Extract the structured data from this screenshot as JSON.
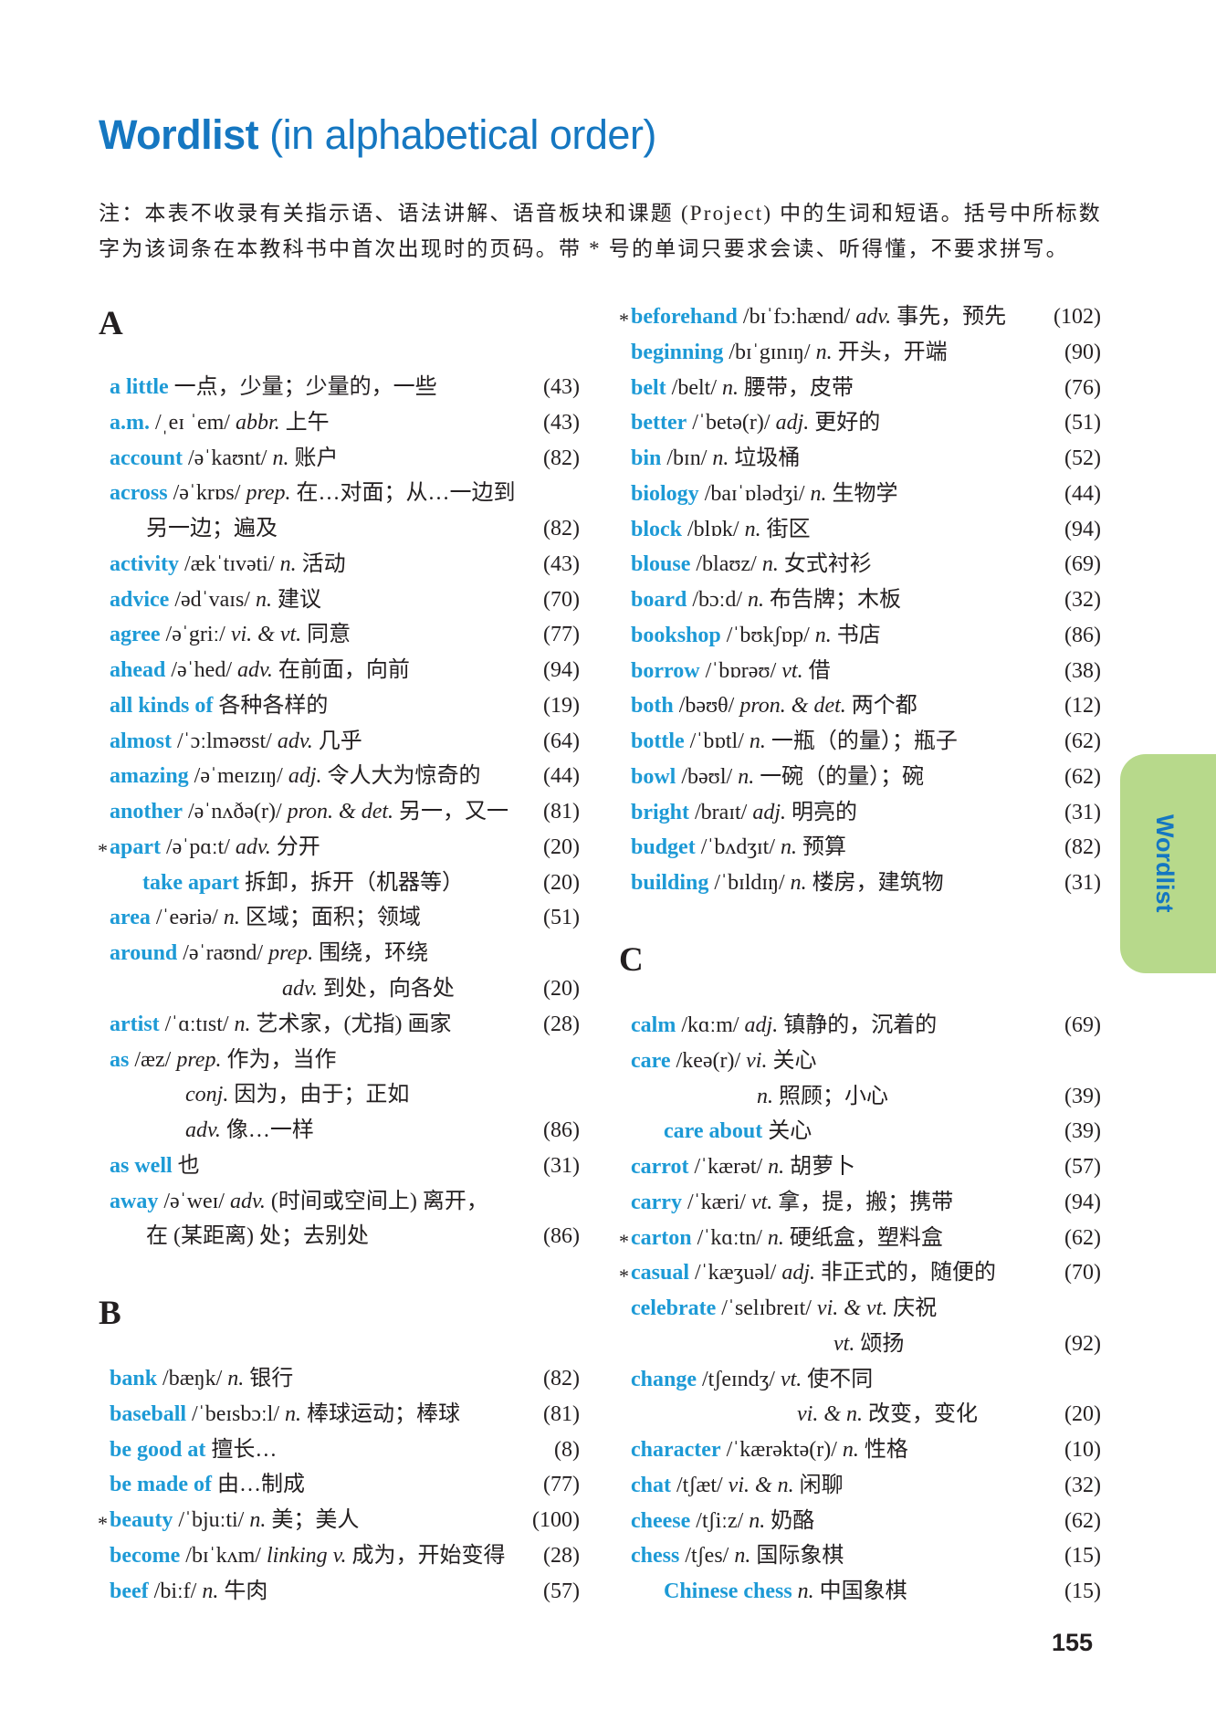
{
  "title": {
    "bold": "Wordlist",
    "rest": " (in alphabetical order)"
  },
  "note": {
    "line1": "注：本表不收录有关指示语、语法讲解、语音板块和课题 (Project) 中的生词和短语。括号中所标数",
    "line2": "字为该词条在本教科书中首次出现时的页码。带 * 号的单词只要求会读、听得懂，不要求拼写。"
  },
  "colors": {
    "headword": "#1d9ad6",
    "title": "#1577c1",
    "tab": "#b7d98b"
  },
  "side_tab": "Wordlist",
  "page_number": "155",
  "sections": [
    {
      "letter": "A",
      "rows": [
        {
          "head": "a little",
          "zh": "一点，少量；少量的，一些",
          "page": "(43)"
        },
        {
          "head": "a.m.",
          "phon": "/ˌeɪ ˈem/",
          "pos": "abbr.",
          "zh": "上午",
          "page": "(43)"
        },
        {
          "head": "account",
          "phon": "/əˈkaʊnt/",
          "pos": "n.",
          "zh": "账户",
          "page": "(82)"
        },
        {
          "head": "across",
          "phon": "/əˈkrɒs/",
          "pos": "prep.",
          "zh": "在…对面；从…一边到"
        },
        {
          "type": "cont",
          "zh": "另一边；遍及",
          "page": "(82)"
        },
        {
          "head": "activity",
          "phon": "/ækˈtɪvəti/",
          "pos": "n.",
          "zh": "活动",
          "page": "(43)"
        },
        {
          "head": "advice",
          "phon": "/ədˈvaɪs/",
          "pos": "n.",
          "zh": "建议",
          "page": "(70)"
        },
        {
          "head": "agree",
          "phon": "/əˈgriː/",
          "pos": "vi. & vt.",
          "zh": "同意",
          "page": "(77)"
        },
        {
          "head": "ahead",
          "phon": "/əˈhed/",
          "pos": "adv.",
          "zh": "在前面，向前",
          "page": "(94)"
        },
        {
          "head": "all kinds of",
          "zh": "各种各样的",
          "page": "(19)"
        },
        {
          "head": "almost",
          "phon": "/ˈɔːlməʊst/",
          "pos": "adv.",
          "zh": "几乎",
          "page": "(64)"
        },
        {
          "head": "amazing",
          "phon": "/əˈmeɪzɪŋ/",
          "pos": "adj.",
          "zh": "令人大为惊奇的",
          "page": "(44)"
        },
        {
          "head": "another",
          "phon": "/əˈnʌðə(r)/",
          "pos": "pron. & det.",
          "zh": "另一，又一",
          "page": "(81)"
        },
        {
          "star": "*",
          "head": "apart",
          "phon": "/əˈpɑːt/",
          "pos": "adv.",
          "zh": "分开",
          "page": "(20)"
        },
        {
          "type": "sub",
          "head": "take apart",
          "zh": "拆卸，拆开（机器等）",
          "page": "(20)"
        },
        {
          "head": "area",
          "phon": "/ˈeəriə/",
          "pos": "n.",
          "zh": "区域；面积；领域",
          "page": "(51)"
        },
        {
          "head": "around",
          "phon": "/əˈraʊnd/",
          "pos": "prep.",
          "zh": "围绕，环绕"
        },
        {
          "type": "cont",
          "pos": "adv.",
          "zh": "到处，向各处",
          "page": "(20)"
        },
        {
          "head": "artist",
          "phon": "/ˈɑːtɪst/",
          "pos": "n.",
          "zh": "艺术家，(尤指) 画家",
          "page": "(28)"
        },
        {
          "head": "as",
          "phon": "/æz/",
          "pos": "prep.",
          "zh": "作为，当作"
        },
        {
          "type": "cont",
          "pos": "conj.",
          "zh": "因为，由于；正如"
        },
        {
          "type": "cont",
          "pos": "adv.",
          "zh": "像…一样",
          "page": "(86)"
        },
        {
          "head": "as well",
          "zh": "也",
          "page": "(31)"
        },
        {
          "head": "away",
          "phon": "/əˈweɪ/",
          "pos": "adv.",
          "zh": "(时间或空间上) 离开，"
        },
        {
          "type": "cont",
          "zh": "在 (某距离) 处；去别处",
          "page": "(86)"
        }
      ]
    },
    {
      "letter": "B",
      "rows": [
        {
          "head": "bank",
          "phon": "/bæŋk/",
          "pos": "n.",
          "zh": "银行",
          "page": "(82)"
        },
        {
          "head": "baseball",
          "phon": "/ˈbeɪsbɔːl/",
          "pos": "n.",
          "zh": "棒球运动；棒球",
          "page": "(81)"
        },
        {
          "head": "be good at",
          "zh": "擅长…",
          "page": "(8)"
        },
        {
          "head": "be made of",
          "zh": "由…制成",
          "page": "(77)"
        },
        {
          "star": "*",
          "head": "beauty",
          "phon": "/ˈbjuːti/",
          "pos": "n.",
          "zh": "美；美人",
          "page": "(100)"
        },
        {
          "head": "become",
          "phon": "/bɪˈkʌm/",
          "pos": "linking v.",
          "zh": "成为，开始变得",
          "page": "(28)"
        },
        {
          "head": "beef",
          "phon": "/biːf/",
          "pos": "n.",
          "zh": "牛肉",
          "page": "(57)"
        }
      ]
    },
    {
      "letter": "",
      "rows": [
        {
          "star": "*",
          "head": "beforehand",
          "phon": "/bɪˈfɔːhænd/",
          "pos": "adv.",
          "zh": "事先，预先",
          "page": "(102)"
        },
        {
          "head": "beginning",
          "phon": "/bɪˈgɪnɪŋ/",
          "pos": "n.",
          "zh": "开头，开端",
          "page": "(90)"
        },
        {
          "head": "belt",
          "phon": "/belt/",
          "pos": "n.",
          "zh": "腰带，皮带",
          "page": "(76)"
        },
        {
          "head": "better",
          "phon": "/ˈbetə(r)/",
          "pos": "adj.",
          "zh": "更好的",
          "page": "(51)"
        },
        {
          "head": "bin",
          "phon": "/bɪn/",
          "pos": "n.",
          "zh": "垃圾桶",
          "page": "(52)"
        },
        {
          "head": "biology",
          "phon": "/baɪˈɒlədʒi/",
          "pos": "n.",
          "zh": "生物学",
          "page": "(44)"
        },
        {
          "head": "block",
          "phon": "/blɒk/",
          "pos": "n.",
          "zh": "街区",
          "page": "(94)"
        },
        {
          "head": "blouse",
          "phon": "/blaʊz/",
          "pos": "n.",
          "zh": "女式衬衫",
          "page": "(69)"
        },
        {
          "head": "board",
          "phon": "/bɔːd/",
          "pos": "n.",
          "zh": "布告牌；木板",
          "page": "(32)"
        },
        {
          "head": "bookshop",
          "phon": "/ˈbʊkʃɒp/",
          "pos": "n.",
          "zh": "书店",
          "page": "(86)"
        },
        {
          "head": "borrow",
          "phon": "/ˈbɒrəʊ/",
          "pos": "vt.",
          "zh": "借",
          "page": "(38)"
        },
        {
          "head": "both",
          "phon": "/bəʊθ/",
          "pos": "pron. & det.",
          "zh": "两个都",
          "page": "(12)"
        },
        {
          "head": "bottle",
          "phon": "/ˈbɒtl/",
          "pos": "n.",
          "zh": "一瓶（的量）；瓶子",
          "page": "(62)"
        },
        {
          "head": "bowl",
          "phon": "/bəʊl/",
          "pos": "n.",
          "zh": "一碗（的量）；碗",
          "page": "(62)"
        },
        {
          "head": "bright",
          "phon": "/braɪt/",
          "pos": "adj.",
          "zh": "明亮的",
          "page": "(31)"
        },
        {
          "head": "budget",
          "phon": "/ˈbʌdʒɪt/",
          "pos": "n.",
          "zh": "预算",
          "page": "(82)"
        },
        {
          "head": "building",
          "phon": "/ˈbɪldɪŋ/",
          "pos": "n.",
          "zh": "楼房，建筑物",
          "page": "(31)"
        }
      ]
    },
    {
      "letter": "C",
      "rows": [
        {
          "head": "calm",
          "phon": "/kɑːm/",
          "pos": "adj.",
          "zh": "镇静的，沉着的",
          "page": "(69)"
        },
        {
          "head": "care",
          "phon": "/keə(r)/",
          "pos": "vi.",
          "zh": "关心"
        },
        {
          "type": "cont",
          "pos": "n.",
          "zh": "照顾；小心",
          "page": "(39)"
        },
        {
          "type": "sub",
          "head": "care about",
          "zh": "关心",
          "page": "(39)"
        },
        {
          "head": "carrot",
          "phon": "/ˈkærət/",
          "pos": "n.",
          "zh": "胡萝卜",
          "page": "(57)"
        },
        {
          "head": "carry",
          "phon": "/ˈkæri/",
          "pos": "vt.",
          "zh": "拿，提，搬；携带",
          "page": "(94)"
        },
        {
          "star": "*",
          "head": "carton",
          "phon": "/ˈkɑːtn/",
          "pos": "n.",
          "zh": "硬纸盒，塑料盒",
          "page": "(62)"
        },
        {
          "star": "*",
          "head": "casual",
          "phon": "/ˈkæʒuəl/",
          "pos": "adj.",
          "zh": "非正式的，随便的",
          "page": "(70)"
        },
        {
          "head": "celebrate",
          "phon": "/ˈselɪbreɪt/",
          "pos": "vi. & vt.",
          "zh": "庆祝"
        },
        {
          "type": "cont",
          "pos": "vt.",
          "zh": "颂扬",
          "page": "(92)"
        },
        {
          "head": "change",
          "phon": "/tʃeɪndʒ/",
          "pos": "vt.",
          "zh": "使不同"
        },
        {
          "type": "cont",
          "pos": "vi. & n.",
          "zh": "改变，变化",
          "page": "(20)"
        },
        {
          "head": "character",
          "phon": "/ˈkærəktə(r)/",
          "pos": "n.",
          "zh": "性格",
          "page": "(10)"
        },
        {
          "head": "chat",
          "phon": "/tʃæt/",
          "pos": "vi. & n.",
          "zh": "闲聊",
          "page": "(32)"
        },
        {
          "head": "cheese",
          "phon": "/tʃiːz/",
          "pos": "n.",
          "zh": "奶酪",
          "page": "(62)"
        },
        {
          "head": "chess",
          "phon": "/tʃes/",
          "pos": "n.",
          "zh": "国际象棋",
          "page": "(15)"
        },
        {
          "type": "sub",
          "head": "Chinese chess",
          "pos": "n.",
          "zh": "中国象棋",
          "page": "(15)"
        }
      ]
    }
  ]
}
